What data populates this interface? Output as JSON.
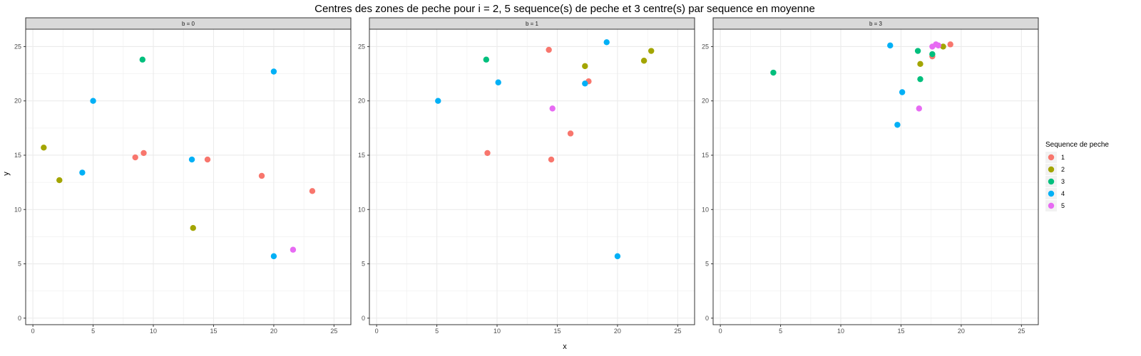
{
  "chart_data": {
    "type": "scatter",
    "title": "Centres des zones de peche pour i = 2, 5 sequence(s) de peche et 3 centre(s) par sequence en moyenne",
    "xlabel": "x",
    "ylabel": "y",
    "xlim": [
      -0.6,
      26.4
    ],
    "ylim": [
      -0.6,
      26.6
    ],
    "x_ticks": [
      0,
      5,
      10,
      15,
      20,
      25
    ],
    "y_ticks": [
      0,
      5,
      10,
      15,
      20,
      25
    ],
    "grid": true,
    "legend": {
      "title": "Sequence de peche",
      "placement": "right",
      "entries": [
        {
          "label": "1",
          "color": "#F8766D"
        },
        {
          "label": "2",
          "color": "#A3A500"
        },
        {
          "label": "3",
          "color": "#00BF7D"
        },
        {
          "label": "4",
          "color": "#00B0F6"
        },
        {
          "label": "5",
          "color": "#E76BF3"
        }
      ]
    },
    "panels": [
      {
        "label": "b = 0",
        "points": [
          {
            "x": 8.5,
            "y": 14.8,
            "seq": "1"
          },
          {
            "x": 9.2,
            "y": 15.2,
            "seq": "1"
          },
          {
            "x": 14.5,
            "y": 14.6,
            "seq": "1"
          },
          {
            "x": 19.0,
            "y": 13.1,
            "seq": "1"
          },
          {
            "x": 23.2,
            "y": 11.7,
            "seq": "1"
          },
          {
            "x": 0.9,
            "y": 15.7,
            "seq": "2"
          },
          {
            "x": 2.2,
            "y": 12.7,
            "seq": "2"
          },
          {
            "x": 13.3,
            "y": 8.3,
            "seq": "2"
          },
          {
            "x": 9.1,
            "y": 23.8,
            "seq": "3"
          },
          {
            "x": 5.0,
            "y": 20.0,
            "seq": "4"
          },
          {
            "x": 4.1,
            "y": 13.4,
            "seq": "4"
          },
          {
            "x": 13.2,
            "y": 14.6,
            "seq": "4"
          },
          {
            "x": 20.0,
            "y": 22.7,
            "seq": "4"
          },
          {
            "x": 20.0,
            "y": 5.7,
            "seq": "4"
          },
          {
            "x": 21.6,
            "y": 6.3,
            "seq": "5"
          }
        ]
      },
      {
        "label": "b = 1",
        "points": [
          {
            "x": 9.2,
            "y": 15.2,
            "seq": "1"
          },
          {
            "x": 14.3,
            "y": 24.7,
            "seq": "1"
          },
          {
            "x": 14.5,
            "y": 14.6,
            "seq": "1"
          },
          {
            "x": 16.1,
            "y": 17.0,
            "seq": "1"
          },
          {
            "x": 17.6,
            "y": 21.8,
            "seq": "1"
          },
          {
            "x": 17.3,
            "y": 23.2,
            "seq": "2"
          },
          {
            "x": 22.2,
            "y": 23.7,
            "seq": "2"
          },
          {
            "x": 22.8,
            "y": 24.6,
            "seq": "2"
          },
          {
            "x": 9.1,
            "y": 23.8,
            "seq": "3"
          },
          {
            "x": 5.1,
            "y": 20.0,
            "seq": "4"
          },
          {
            "x": 10.1,
            "y": 21.7,
            "seq": "4"
          },
          {
            "x": 17.3,
            "y": 21.6,
            "seq": "4"
          },
          {
            "x": 19.1,
            "y": 25.4,
            "seq": "4"
          },
          {
            "x": 20.0,
            "y": 5.7,
            "seq": "4"
          },
          {
            "x": 14.6,
            "y": 19.3,
            "seq": "5"
          }
        ]
      },
      {
        "label": "b = 3",
        "points": [
          {
            "x": 17.6,
            "y": 24.1,
            "seq": "1"
          },
          {
            "x": 19.1,
            "y": 25.2,
            "seq": "1"
          },
          {
            "x": 16.6,
            "y": 23.4,
            "seq": "2"
          },
          {
            "x": 18.5,
            "y": 25.0,
            "seq": "2"
          },
          {
            "x": 4.4,
            "y": 22.6,
            "seq": "3"
          },
          {
            "x": 16.4,
            "y": 24.6,
            "seq": "3"
          },
          {
            "x": 16.6,
            "y": 22.0,
            "seq": "3"
          },
          {
            "x": 17.6,
            "y": 24.3,
            "seq": "3"
          },
          {
            "x": 14.1,
            "y": 25.1,
            "seq": "4"
          },
          {
            "x": 15.1,
            "y": 20.8,
            "seq": "4"
          },
          {
            "x": 14.7,
            "y": 17.8,
            "seq": "4"
          },
          {
            "x": 16.5,
            "y": 19.3,
            "seq": "5"
          },
          {
            "x": 17.6,
            "y": 25.0,
            "seq": "5"
          },
          {
            "x": 17.9,
            "y": 25.2,
            "seq": "5"
          },
          {
            "x": 18.1,
            "y": 25.1,
            "seq": "5"
          }
        ]
      }
    ]
  }
}
